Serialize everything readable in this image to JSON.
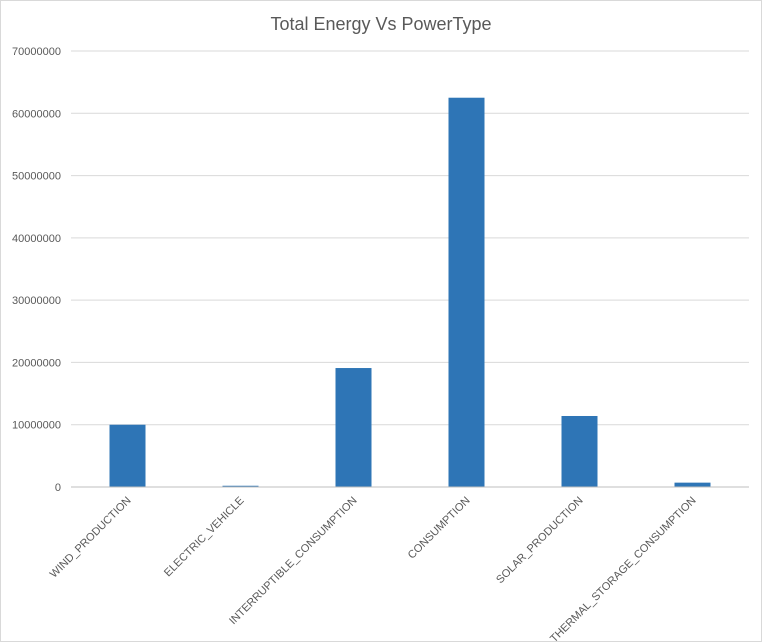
{
  "chart_data": {
    "type": "bar",
    "title": "Total Energy Vs PowerType",
    "xlabel": "",
    "ylabel": "",
    "ylim": [
      0,
      70000000
    ],
    "y_ticks": [
      "0",
      "10000000",
      "20000000",
      "30000000",
      "40000000",
      "50000000",
      "60000000",
      "70000000"
    ],
    "categories": [
      "WIND_PRODUCTION",
      "ELECTRIC_VEHICLE",
      "INTERRUPTIBLE_CONSUMPTION",
      "CONSUMPTION",
      "SOLAR_PRODUCTION",
      "THERMAL_STORAGE_CONSUMPTION"
    ],
    "values": [
      10000000,
      200000,
      19100000,
      62500000,
      11400000,
      700000
    ],
    "grid": true,
    "legend": "none",
    "bar_color": "#2e75b6"
  }
}
